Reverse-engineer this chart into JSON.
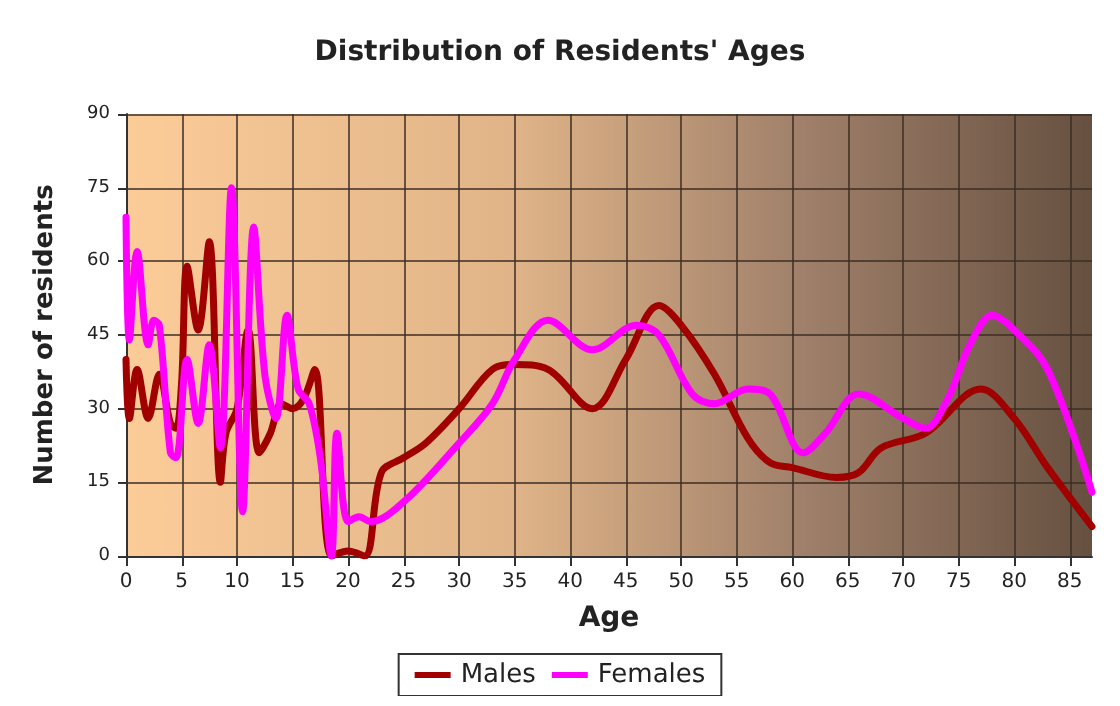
{
  "chart_data": {
    "type": "line",
    "title": "Distribution of Residents' Ages",
    "xlabel": "Age",
    "ylabel": "Number of residents",
    "xlim": [
      0,
      87
    ],
    "xticks": [
      0,
      5,
      10,
      15,
      20,
      25,
      30,
      35,
      40,
      45,
      50,
      55,
      60,
      65,
      70,
      75,
      80,
      85
    ],
    "ylim": [
      0,
      90
    ],
    "yticks": [
      0,
      15,
      30,
      45,
      60,
      75,
      90
    ],
    "grid": true,
    "legend": "bottom",
    "line_style": "solid",
    "marker": "none",
    "series": [
      {
        "name": "Males",
        "color": "#a00000",
        "x": [
          0,
          0.3,
          1,
          2,
          3,
          4,
          4.5,
          5,
          5.5,
          6.5,
          7.5,
          8.5,
          9,
          10,
          11,
          12,
          13,
          14,
          15,
          16,
          17,
          18.5,
          20,
          21.5,
          23,
          25,
          27,
          30,
          33,
          35,
          38,
          42,
          45,
          48,
          50,
          53,
          56,
          58,
          60,
          64,
          66,
          68,
          72,
          77,
          80,
          83,
          87
        ],
        "values": [
          40,
          28,
          38,
          28,
          37,
          27,
          26,
          35,
          59,
          46,
          64,
          15,
          25,
          30,
          46,
          21,
          25,
          31,
          30,
          32,
          38,
          0,
          1,
          0,
          17,
          20,
          23,
          30,
          38,
          39,
          38,
          30,
          40,
          51,
          47,
          37,
          24,
          19,
          18,
          16,
          17,
          22,
          25,
          34,
          28,
          18,
          6
        ]
      },
      {
        "name": "Females",
        "color": "#ff00ff",
        "x": [
          0,
          0.3,
          1,
          2,
          2.5,
          3,
          4,
          4.5,
          5.5,
          6.5,
          7.5,
          8.5,
          9.5,
          10.5,
          11.5,
          12.5,
          13.5,
          14.5,
          15.5,
          16.5,
          17.5,
          18.5,
          19,
          20,
          21,
          22,
          25,
          30,
          33,
          35,
          38,
          42,
          46,
          48,
          51,
          53,
          56,
          58,
          61,
          63,
          66,
          70,
          72,
          74,
          76,
          78,
          80,
          83,
          87
        ],
        "values": [
          69,
          44,
          62,
          43,
          48,
          47,
          21,
          20,
          40,
          27,
          43,
          22,
          75,
          9,
          67,
          37,
          28,
          49,
          34,
          31,
          20,
          0,
          25,
          7,
          8,
          7,
          11,
          23,
          31,
          40,
          48,
          42,
          47,
          45,
          33,
          31,
          34,
          33,
          21,
          25,
          33,
          28,
          26,
          32,
          43,
          49,
          46,
          38,
          13
        ]
      }
    ]
  }
}
